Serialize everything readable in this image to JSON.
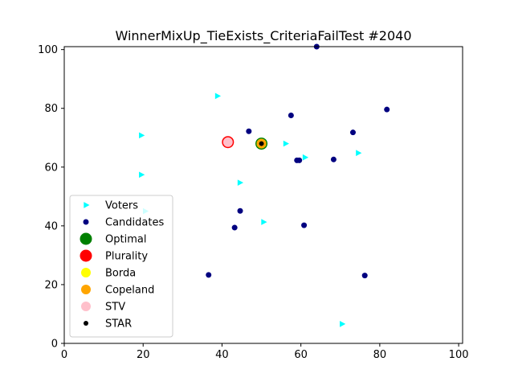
{
  "chart_data": {
    "type": "scatter",
    "title": "WinnerMixUp_TieExists_CriteriaFailTest #2040",
    "xlabel": "",
    "ylabel": "",
    "xlim": [
      0,
      101
    ],
    "ylim": [
      0,
      101
    ],
    "x_ticks": [
      0,
      20,
      40,
      60,
      80,
      100
    ],
    "y_ticks": [
      0,
      20,
      40,
      60,
      80,
      100
    ],
    "grid": false,
    "legend_position": "lower-left",
    "series": [
      {
        "name": "Voters",
        "marker": "triangle-right",
        "color": "#00FFFF",
        "points": [
          [
            38.8,
            84.2
          ],
          [
            19.5,
            70.8
          ],
          [
            19.5,
            57.4
          ],
          [
            56.1,
            68.0
          ],
          [
            61.0,
            63.3
          ],
          [
            74.5,
            64.8
          ],
          [
            44.5,
            54.7
          ],
          [
            50.5,
            41.3
          ],
          [
            70.4,
            6.6
          ],
          [
            20.5,
            45.0
          ]
        ]
      },
      {
        "name": "Candidates",
        "marker": "circle",
        "color": "#000080",
        "points": [
          [
            64.0,
            101.0
          ],
          [
            57.5,
            77.6
          ],
          [
            81.8,
            79.6
          ],
          [
            46.8,
            72.2
          ],
          [
            73.2,
            71.8
          ],
          [
            50.0,
            68.0
          ],
          [
            59.0,
            62.3
          ],
          [
            59.6,
            62.3
          ],
          [
            68.3,
            62.6
          ],
          [
            44.6,
            45.1
          ],
          [
            43.2,
            39.4
          ],
          [
            60.8,
            40.2
          ],
          [
            36.6,
            23.3
          ],
          [
            76.2,
            23.1
          ]
        ]
      },
      {
        "name": "Optimal",
        "marker": "circle-large",
        "color": "#008000",
        "points": [
          [
            50.0,
            68.0
          ]
        ]
      },
      {
        "name": "Plurality",
        "marker": "circle-large",
        "color": "#FF0000",
        "points": [
          [
            41.5,
            68.5
          ]
        ]
      },
      {
        "name": "Borda",
        "marker": "circle-medium",
        "color": "#FFFF00",
        "points": [
          [
            50.0,
            68.0
          ]
        ]
      },
      {
        "name": "Copeland",
        "marker": "circle-medium",
        "color": "#FFA500",
        "points": [
          [
            50.0,
            68.0
          ]
        ]
      },
      {
        "name": "STV",
        "marker": "circle-medium",
        "color": "#FFC0CB",
        "points": [
          [
            41.5,
            68.5
          ]
        ]
      },
      {
        "name": "STAR",
        "marker": "circle-small",
        "color": "#000000",
        "points": [
          [
            50.0,
            68.0
          ]
        ]
      }
    ]
  }
}
